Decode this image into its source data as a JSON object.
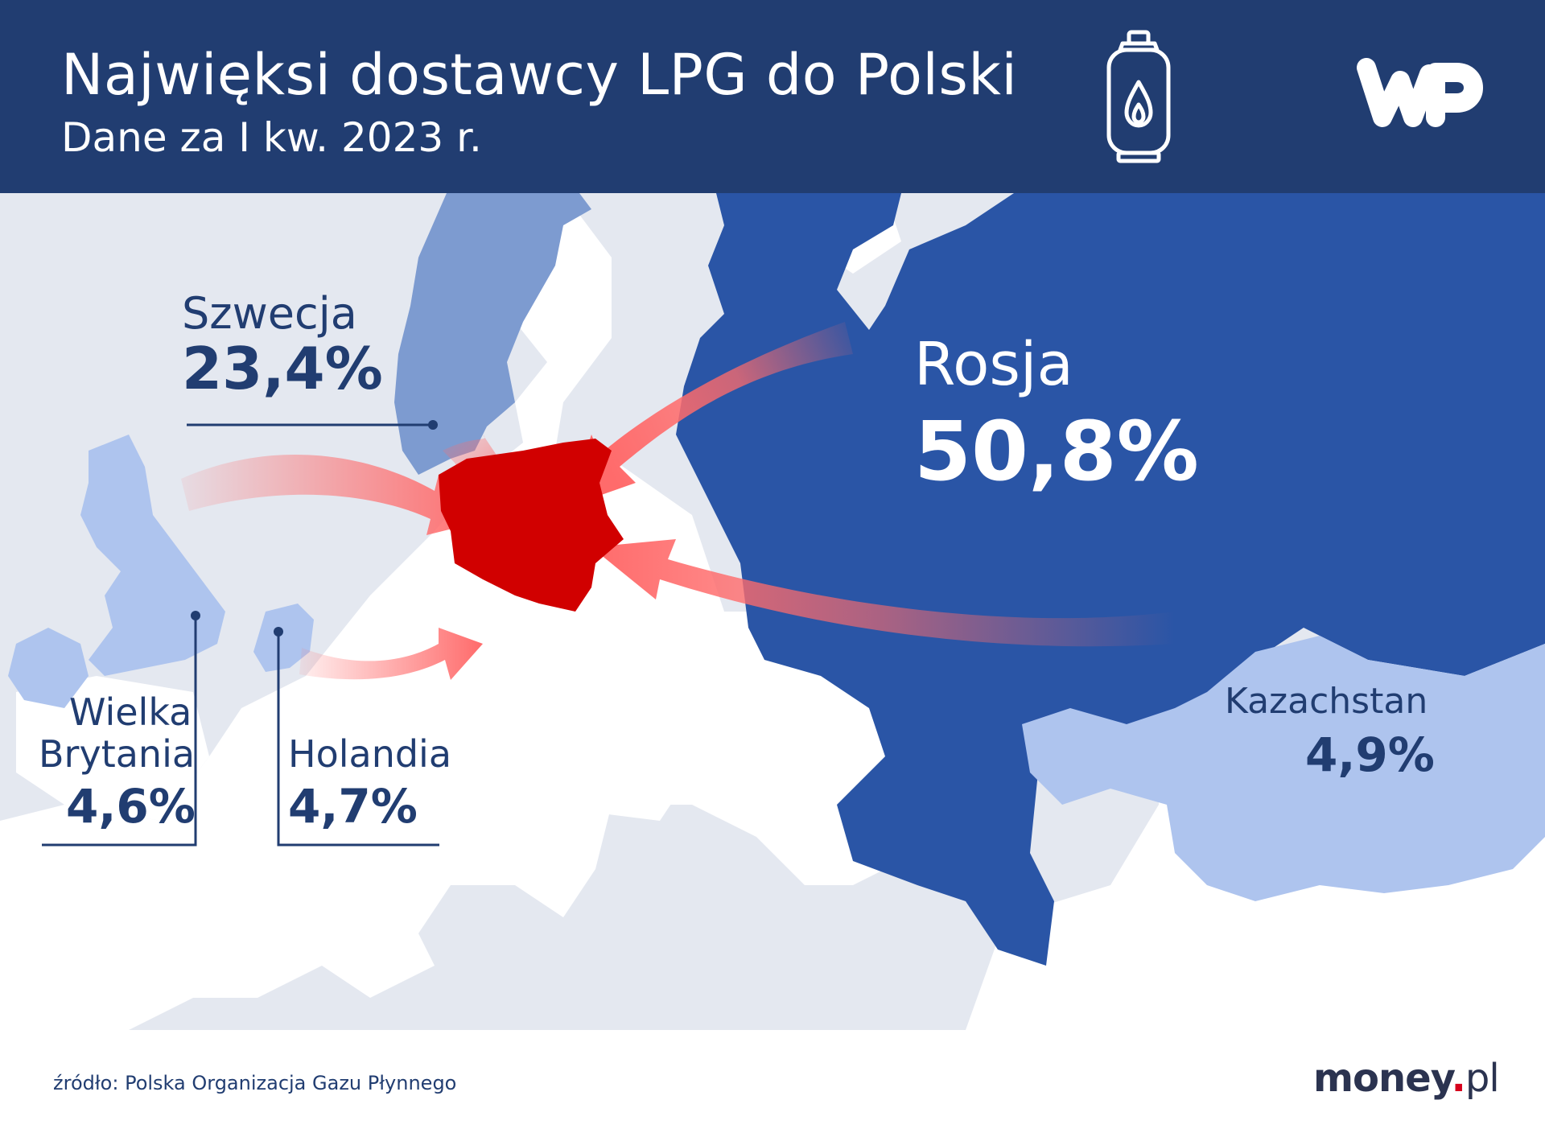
{
  "header": {
    "title": "Najwięksi dostawcy LPG do Polski",
    "subtitle": "Dane za I kw. 2023 r."
  },
  "icons": [
    "gas-cylinder-icon",
    "wp-logo"
  ],
  "colors": {
    "header_bg": "#213d71",
    "russia": "#2a55a6",
    "sweden": "#7d9bd0",
    "light_supplier": "#aec4ee",
    "poland": "#d10000",
    "arrow": "#ff6b6b",
    "land": "#ffffff",
    "sea": "#e4e8f0"
  },
  "suppliers": [
    {
      "country": "Rosja",
      "value": "50,8%"
    },
    {
      "country": "Szwecja",
      "value": "23,4%"
    },
    {
      "country": "Kazachstan",
      "value": "4,9%"
    },
    {
      "country": "Holandia",
      "value": "4,7%"
    },
    {
      "country": "Wielka Brytania",
      "country_line1": "Wielka",
      "country_line2": "Brytania",
      "value": "4,6%"
    }
  ],
  "footer": {
    "source": "źródło: Polska Organizacja Gazu Płynnego",
    "brand_main": "money",
    "brand_dot": ".",
    "brand_tld": "pl"
  }
}
